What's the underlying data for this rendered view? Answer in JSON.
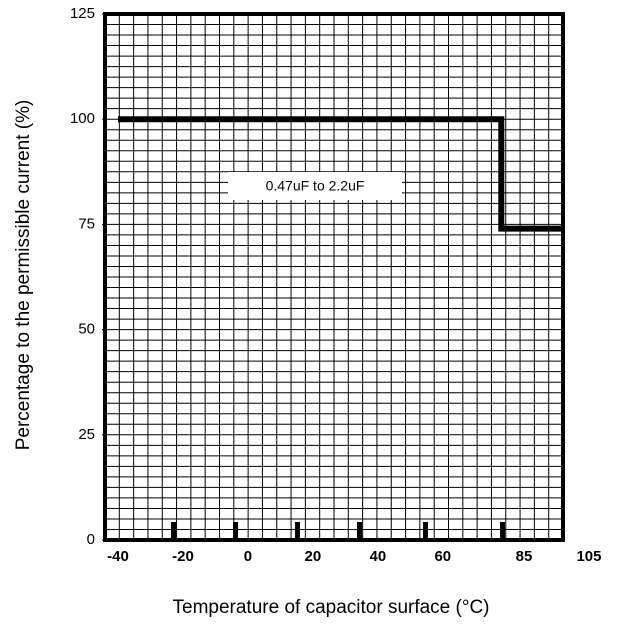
{
  "chart_data": {
    "type": "line",
    "x_label": "Temperature of capacitor surface (°C)",
    "y_label": "Percentage to the permissible current (%)",
    "annotation": "0.47uF to 2.2uF",
    "x": [
      -40,
      78,
      78,
      97
    ],
    "series": [
      {
        "color": "#000000",
        "values": [
          100,
          100,
          74,
          74
        ]
      }
    ],
    "xlim": [
      -44,
      97
    ],
    "xticks": [
      -40,
      -20,
      0,
      20,
      40,
      60,
      85,
      105
    ],
    "ylim": [
      0,
      125
    ],
    "yticks": [
      0,
      25,
      50,
      75,
      100,
      125
    ],
    "grid": true
  }
}
